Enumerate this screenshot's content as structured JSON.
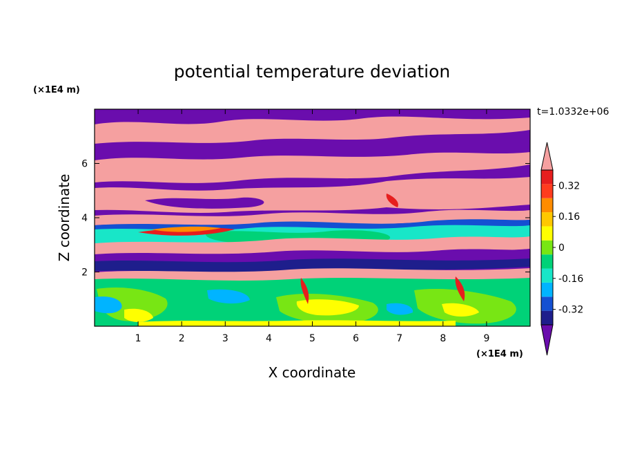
{
  "chart_data": {
    "type": "heatmap",
    "title": "potential temperature deviation",
    "time_label": "t=1.0332e+06",
    "xlabel": "X coordinate",
    "ylabel": "Z coordinate",
    "x_unit": "(×1E4 m)",
    "y_unit": "(×1E4 m)",
    "xlim": [
      0,
      10
    ],
    "ylim": [
      0,
      8
    ],
    "x_ticks": [
      1,
      2,
      3,
      4,
      5,
      6,
      7,
      8,
      9
    ],
    "y_ticks": [
      2,
      4,
      6
    ],
    "colorbar": {
      "levels": [
        -0.48,
        -0.4,
        -0.32,
        -0.24,
        -0.16,
        -0.08,
        0,
        0.08,
        0.16,
        0.24,
        0.32,
        0.4,
        0.48
      ],
      "tick_values": [
        -0.32,
        -0.16,
        0,
        0.16,
        0.32
      ],
      "tick_labels": [
        "-0.32",
        "-0.16",
        "0",
        "0.16",
        "0.32"
      ],
      "colors": [
        "#6a0dad",
        "#1e1e8c",
        "#1450d2",
        "#00b4ff",
        "#18e6c8",
        "#00d278",
        "#78e614",
        "#ffff00",
        "#ffc800",
        "#ff8c00",
        "#ff3c1e",
        "#e61e1e",
        "#f5a0a0"
      ],
      "extend": "both"
    },
    "field_bands": [
      {
        "z_range": [
          6.9,
          8.0
        ],
        "value": "mixed",
        "colors": [
          "#6a0dad",
          "#f5a0a0"
        ]
      },
      {
        "z_range": [
          4.2,
          6.9
        ],
        "value": "mixed",
        "colors": [
          "#6a0dad",
          "#f5a0a0"
        ]
      },
      {
        "z_range": [
          2.0,
          4.2
        ],
        "value": "mixed",
        "colors": [
          "#1450d2",
          "#18e6c8",
          "#e61e1e",
          "#f5a0a0",
          "#6a0dad"
        ]
      },
      {
        "z_range": [
          0.0,
          2.0
        ],
        "value": "mixed",
        "colors": [
          "#00d278",
          "#78e614",
          "#ffff00",
          "#00b4ff"
        ]
      }
    ]
  }
}
